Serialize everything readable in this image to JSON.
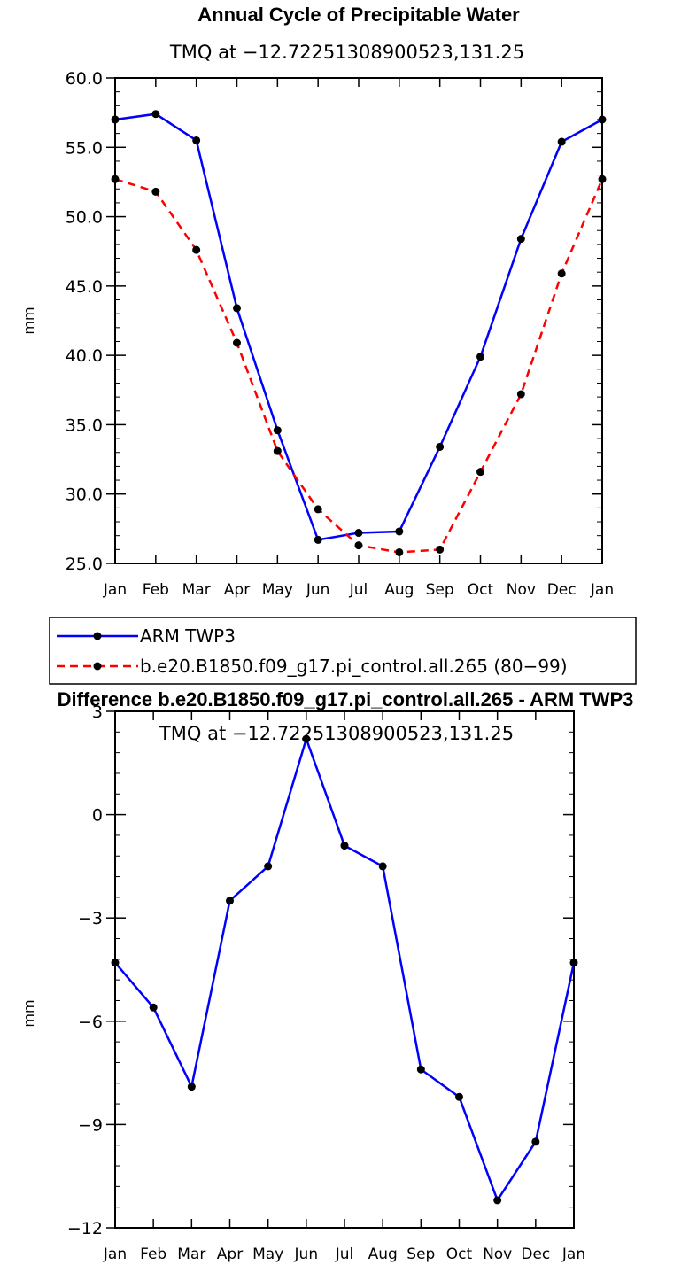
{
  "chart_data": [
    {
      "type": "line",
      "title": "Annual Cycle of Precipitable Water",
      "subtitle": "TMQ at −12.72251308900523,131.25",
      "ylabel": "mm",
      "xlabel": "",
      "categories": [
        "Jan",
        "Feb",
        "Mar",
        "Apr",
        "May",
        "Jun",
        "Jul",
        "Aug",
        "Sep",
        "Oct",
        "Nov",
        "Dec",
        "Jan"
      ],
      "ylim": [
        25,
        60
      ],
      "yticks": [
        "25.0",
        "30.0",
        "35.0",
        "40.0",
        "45.0",
        "50.0",
        "55.0",
        "60.0"
      ],
      "grid": false,
      "legend_position": "below",
      "series": [
        {
          "name": "ARM TWP3",
          "color": "#0000ff",
          "style": "solid",
          "values": [
            57.0,
            57.4,
            55.5,
            43.4,
            34.6,
            26.7,
            27.2,
            27.3,
            33.4,
            39.9,
            48.4,
            55.4,
            57.0
          ]
        },
        {
          "name": "b.e20.B1850.f09_g17.pi_control.all.265 (80−99)",
          "color": "#ff0000",
          "style": "dashed",
          "values": [
            52.7,
            51.8,
            47.6,
            40.9,
            33.1,
            28.9,
            26.3,
            25.8,
            26.0,
            31.6,
            37.2,
            45.9,
            52.7
          ]
        }
      ]
    },
    {
      "type": "line",
      "title": "Difference b.e20.B1850.f09_g17.pi_control.all.265 - ARM TWP3",
      "subtitle": "TMQ at −12.72251308900523,131.25",
      "ylabel": "mm",
      "xlabel": "",
      "categories": [
        "Jan",
        "Feb",
        "Mar",
        "Apr",
        "May",
        "Jun",
        "Jul",
        "Aug",
        "Sep",
        "Oct",
        "Nov",
        "Dec",
        "Jan"
      ],
      "ylim": [
        -12,
        3
      ],
      "yticks": [
        "−12",
        "−9",
        "−6",
        "−3",
        "0",
        "3"
      ],
      "grid": false,
      "series": [
        {
          "color": "#0000ff",
          "style": "solid",
          "values": [
            -4.3,
            -5.6,
            -7.9,
            -2.5,
            -1.5,
            2.2,
            -0.9,
            -1.5,
            -7.4,
            -8.2,
            -11.2,
            -9.5,
            -4.3
          ]
        }
      ]
    }
  ]
}
